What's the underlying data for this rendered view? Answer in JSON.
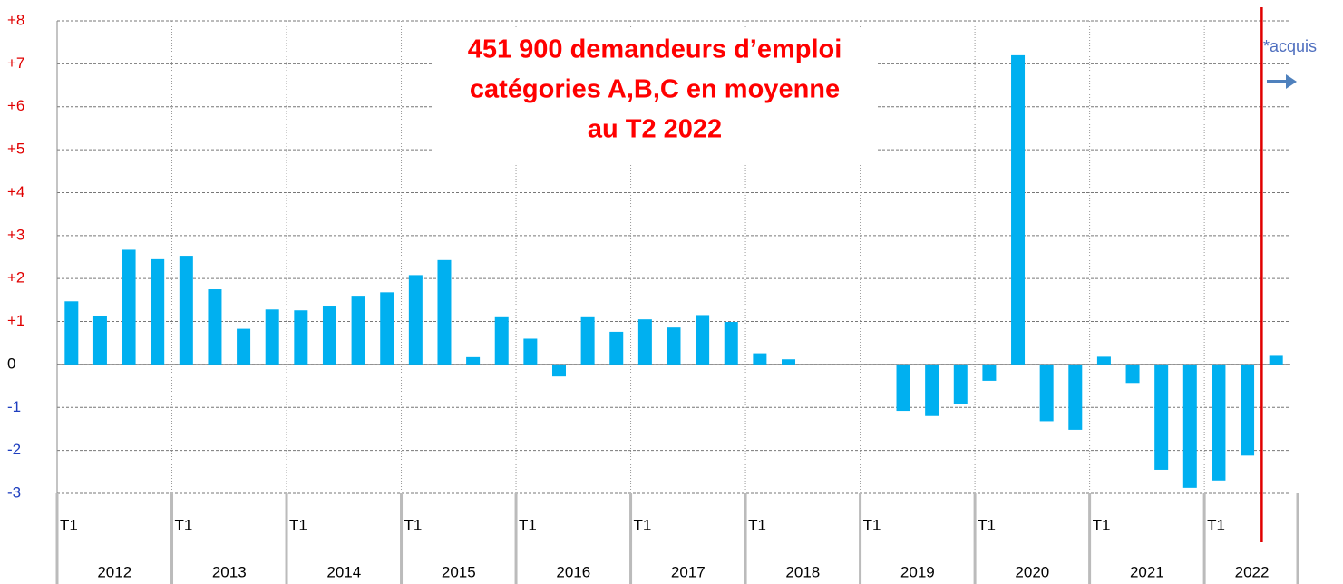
{
  "chart_data": {
    "type": "bar",
    "title": [
      "451 900 demandeurs d’emploi",
      "catégories A,B,C en moyenne",
      "au T2 2022"
    ],
    "annotation": "*acquis",
    "categories": [
      "T1",
      null,
      null,
      null,
      "T1",
      null,
      null,
      null,
      "T1",
      null,
      null,
      null,
      "T1",
      null,
      null,
      null,
      "T1",
      null,
      null,
      null,
      "T1",
      null,
      null,
      null,
      "T1",
      null,
      null,
      null,
      "T1",
      null,
      null,
      null,
      "T1",
      null,
      null,
      null,
      "T1",
      null,
      null,
      null,
      "T1",
      null,
      null
    ],
    "years": [
      "2012",
      "2013",
      "2014",
      "2015",
      "2016",
      "2017",
      "2018",
      "2019",
      "2020",
      "2021",
      "2022"
    ],
    "values": [
      1.47,
      1.13,
      2.67,
      2.45,
      2.53,
      1.75,
      0.83,
      1.28,
      1.26,
      1.37,
      1.6,
      1.68,
      2.08,
      2.43,
      0.17,
      1.1,
      0.6,
      -0.28,
      1.1,
      0.76,
      1.05,
      0.86,
      1.15,
      0.99,
      0.26,
      0.12,
      0,
      0,
      0,
      -1.08,
      -1.2,
      -0.92,
      -0.38,
      7.2,
      -1.32,
      -1.52,
      0.18,
      -0.43,
      -2.45,
      -2.87,
      -2.7,
      -2.12,
      0.2
    ],
    "color": "#00b0f0",
    "ylim": [
      -3,
      8
    ],
    "yticks": [
      -3,
      -2,
      -1,
      0,
      {
        "value": 1,
        "label": "+1"
      },
      {
        "value": 2,
        "label": "+2"
      },
      {
        "value": 3,
        "label": "+3"
      },
      {
        "value": 4,
        "label": "+4"
      },
      {
        "value": 5,
        "label": "+5"
      },
      {
        "value": 6,
        "label": "+6"
      },
      {
        "value": 7,
        "label": "+7"
      },
      {
        "value": 8,
        "label": "+8"
      }
    ],
    "grid": true
  }
}
